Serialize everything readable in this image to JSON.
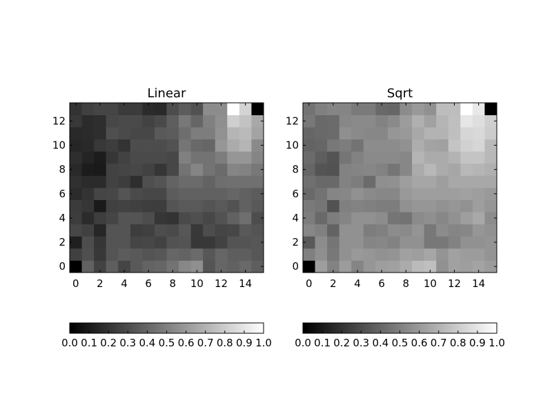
{
  "chart_data": [
    {
      "type": "heatmap",
      "title": "Linear",
      "colormap": "gray",
      "x_ticks": [
        0,
        2,
        4,
        6,
        8,
        10,
        12,
        14
      ],
      "y_ticks": [
        0,
        2,
        4,
        6,
        8,
        10,
        12
      ],
      "xlim": [
        -0.5,
        15.5
      ],
      "ylim": [
        -0.5,
        13.5
      ],
      "colorbar_ticks": [
        "0.0",
        "0.1",
        "0.2",
        "0.3",
        "0.4",
        "0.5",
        "0.6",
        "0.7",
        "0.8",
        "0.9",
        "1.0"
      ],
      "colorbar_range": [
        0.0,
        1.0
      ],
      "rows_bottom_to_top": [
        [
          0.0,
          0.38,
          0.26,
          0.37,
          0.27,
          0.35,
          0.39,
          0.4,
          0.45,
          0.53,
          0.56,
          0.33,
          0.4,
          0.38,
          0.41,
          0.37
        ],
        [
          0.25,
          0.31,
          0.22,
          0.33,
          0.36,
          0.35,
          0.33,
          0.34,
          0.4,
          0.39,
          0.42,
          0.34,
          0.4,
          0.37,
          0.37,
          0.34
        ],
        [
          0.12,
          0.3,
          0.21,
          0.33,
          0.33,
          0.27,
          0.28,
          0.26,
          0.32,
          0.33,
          0.22,
          0.22,
          0.26,
          0.33,
          0.33,
          0.34
        ],
        [
          0.28,
          0.25,
          0.15,
          0.33,
          0.33,
          0.24,
          0.25,
          0.3,
          0.29,
          0.34,
          0.22,
          0.3,
          0.27,
          0.28,
          0.35,
          0.33
        ],
        [
          0.24,
          0.17,
          0.24,
          0.27,
          0.33,
          0.33,
          0.3,
          0.21,
          0.2,
          0.29,
          0.31,
          0.28,
          0.32,
          0.38,
          0.43,
          0.3
        ],
        [
          0.23,
          0.21,
          0.1,
          0.25,
          0.26,
          0.25,
          0.24,
          0.24,
          0.33,
          0.35,
          0.35,
          0.33,
          0.35,
          0.32,
          0.38,
          0.35
        ],
        [
          0.17,
          0.2,
          0.27,
          0.28,
          0.33,
          0.29,
          0.28,
          0.28,
          0.36,
          0.38,
          0.38,
          0.38,
          0.38,
          0.4,
          0.38,
          0.36
        ],
        [
          0.19,
          0.17,
          0.17,
          0.26,
          0.24,
          0.18,
          0.31,
          0.33,
          0.39,
          0.42,
          0.42,
          0.39,
          0.43,
          0.44,
          0.44,
          0.44
        ],
        [
          0.16,
          0.11,
          0.1,
          0.26,
          0.27,
          0.28,
          0.26,
          0.21,
          0.28,
          0.45,
          0.52,
          0.45,
          0.42,
          0.52,
          0.51,
          0.47
        ],
        [
          0.18,
          0.14,
          0.11,
          0.21,
          0.26,
          0.29,
          0.29,
          0.29,
          0.28,
          0.5,
          0.45,
          0.45,
          0.49,
          0.59,
          0.59,
          0.52
        ],
        [
          0.15,
          0.16,
          0.22,
          0.24,
          0.2,
          0.3,
          0.3,
          0.3,
          0.32,
          0.46,
          0.41,
          0.4,
          0.59,
          0.67,
          0.71,
          0.54
        ],
        [
          0.16,
          0.17,
          0.18,
          0.31,
          0.29,
          0.28,
          0.28,
          0.35,
          0.36,
          0.43,
          0.49,
          0.49,
          0.57,
          0.71,
          0.73,
          0.64
        ],
        [
          0.22,
          0.17,
          0.18,
          0.28,
          0.29,
          0.29,
          0.26,
          0.29,
          0.37,
          0.47,
          0.4,
          0.5,
          0.56,
          0.81,
          0.76,
          0.66
        ],
        [
          0.2,
          0.25,
          0.27,
          0.27,
          0.23,
          0.23,
          0.17,
          0.16,
          0.3,
          0.36,
          0.32,
          0.55,
          0.55,
          1.0,
          0.83,
          0.0
        ]
      ]
    },
    {
      "type": "heatmap",
      "title": "Sqrt",
      "colormap": "gray",
      "x_ticks": [
        0,
        2,
        4,
        6,
        8,
        10,
        12,
        14
      ],
      "y_ticks": [
        0,
        2,
        4,
        6,
        8,
        10,
        12
      ],
      "xlim": [
        -0.5,
        15.5
      ],
      "ylim": [
        -0.5,
        13.5
      ],
      "colorbar_ticks": [
        "0.0",
        "0.1",
        "0.2",
        "0.3",
        "0.4",
        "0.5",
        "0.6",
        "0.7",
        "0.8",
        "0.9",
        "1.0"
      ],
      "colorbar_range": [
        0.0,
        1.0
      ],
      "rows_bottom_to_top": [
        [
          0.0,
          0.62,
          0.51,
          0.61,
          0.52,
          0.59,
          0.62,
          0.63,
          0.67,
          0.73,
          0.75,
          0.57,
          0.63,
          0.62,
          0.64,
          0.61
        ],
        [
          0.5,
          0.56,
          0.47,
          0.57,
          0.6,
          0.59,
          0.57,
          0.58,
          0.63,
          0.62,
          0.65,
          0.58,
          0.63,
          0.61,
          0.61,
          0.58
        ],
        [
          0.35,
          0.55,
          0.46,
          0.57,
          0.57,
          0.52,
          0.53,
          0.51,
          0.57,
          0.57,
          0.47,
          0.47,
          0.51,
          0.57,
          0.57,
          0.58
        ],
        [
          0.53,
          0.5,
          0.39,
          0.57,
          0.57,
          0.49,
          0.5,
          0.55,
          0.54,
          0.58,
          0.47,
          0.55,
          0.52,
          0.53,
          0.59,
          0.57
        ],
        [
          0.49,
          0.41,
          0.49,
          0.52,
          0.57,
          0.57,
          0.55,
          0.46,
          0.45,
          0.54,
          0.56,
          0.53,
          0.57,
          0.62,
          0.66,
          0.55
        ],
        [
          0.48,
          0.46,
          0.32,
          0.5,
          0.51,
          0.5,
          0.49,
          0.49,
          0.57,
          0.59,
          0.59,
          0.57,
          0.59,
          0.57,
          0.62,
          0.59
        ],
        [
          0.41,
          0.45,
          0.52,
          0.53,
          0.57,
          0.54,
          0.53,
          0.53,
          0.6,
          0.62,
          0.62,
          0.62,
          0.62,
          0.63,
          0.62,
          0.6
        ],
        [
          0.44,
          0.41,
          0.41,
          0.51,
          0.49,
          0.42,
          0.56,
          0.57,
          0.62,
          0.65,
          0.65,
          0.62,
          0.66,
          0.66,
          0.66,
          0.66
        ],
        [
          0.4,
          0.33,
          0.32,
          0.51,
          0.52,
          0.53,
          0.51,
          0.46,
          0.53,
          0.67,
          0.72,
          0.67,
          0.65,
          0.72,
          0.71,
          0.69
        ],
        [
          0.42,
          0.37,
          0.33,
          0.46,
          0.51,
          0.54,
          0.54,
          0.54,
          0.53,
          0.71,
          0.67,
          0.67,
          0.7,
          0.77,
          0.77,
          0.72
        ],
        [
          0.39,
          0.4,
          0.47,
          0.49,
          0.45,
          0.55,
          0.55,
          0.55,
          0.57,
          0.68,
          0.64,
          0.63,
          0.77,
          0.82,
          0.84,
          0.73
        ],
        [
          0.4,
          0.41,
          0.42,
          0.56,
          0.54,
          0.53,
          0.53,
          0.59,
          0.6,
          0.66,
          0.7,
          0.7,
          0.75,
          0.84,
          0.85,
          0.8
        ],
        [
          0.47,
          0.41,
          0.42,
          0.53,
          0.54,
          0.54,
          0.51,
          0.54,
          0.61,
          0.69,
          0.63,
          0.71,
          0.75,
          0.9,
          0.87,
          0.81
        ],
        [
          0.45,
          0.5,
          0.52,
          0.52,
          0.48,
          0.48,
          0.41,
          0.4,
          0.55,
          0.6,
          0.57,
          0.74,
          0.74,
          1.0,
          0.91,
          0.0
        ]
      ]
    }
  ]
}
